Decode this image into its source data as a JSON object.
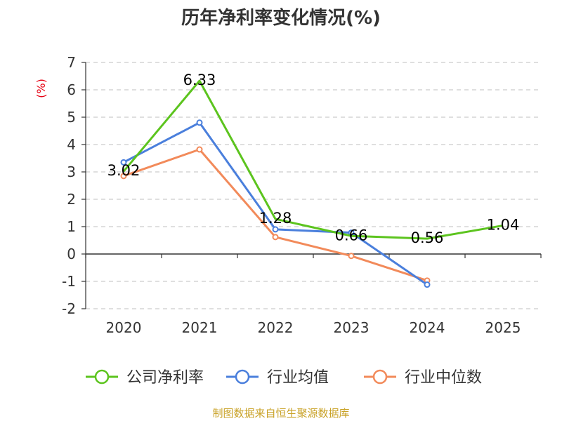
{
  "colors": {
    "company": "#5cc41e",
    "industry_avg": "#4a7fdc",
    "industry_median": "#f28a5a",
    "grid": "#cccccc",
    "axis": "#333333",
    "source": "#c9a227",
    "ylabel": "#e60012"
  },
  "source_text": "制图数据来自恒生聚源数据库",
  "chart_data": {
    "type": "line",
    "title": "历年净利率变化情况(%)",
    "ylabel": "(%)",
    "xlabel": "",
    "categories": [
      "2020",
      "2021",
      "2022",
      "2023",
      "2024",
      "2025"
    ],
    "ylim": [
      -2,
      7
    ],
    "yticks": [
      7,
      6,
      5,
      4,
      3,
      2,
      1,
      0,
      -1,
      -2
    ],
    "ytick_labels": [
      "7",
      "6",
      "5",
      "4",
      "3",
      "2",
      "1",
      "0",
      "-1",
      "-2"
    ],
    "grid": true,
    "legend_position": "bottom",
    "series": [
      {
        "name": "公司净利率",
        "color_key": "company",
        "values": [
          3.02,
          6.33,
          1.28,
          0.66,
          0.56,
          1.04
        ],
        "markers": [
          false,
          false,
          false,
          false,
          false,
          false
        ],
        "labels": [
          "3.02",
          "6.33",
          "1.28",
          "0.66",
          "0.56",
          "1.04"
        ]
      },
      {
        "name": "行业均值",
        "color_key": "industry_avg",
        "values": [
          3.35,
          4.8,
          0.9,
          0.78,
          -1.12,
          null
        ],
        "markers": [
          true,
          true,
          true,
          true,
          true,
          false
        ]
      },
      {
        "name": "行业中位数",
        "color_key": "industry_median",
        "values": [
          2.85,
          3.82,
          0.62,
          -0.07,
          -0.97,
          null
        ],
        "markers": [
          true,
          true,
          true,
          true,
          true,
          false
        ]
      }
    ]
  }
}
